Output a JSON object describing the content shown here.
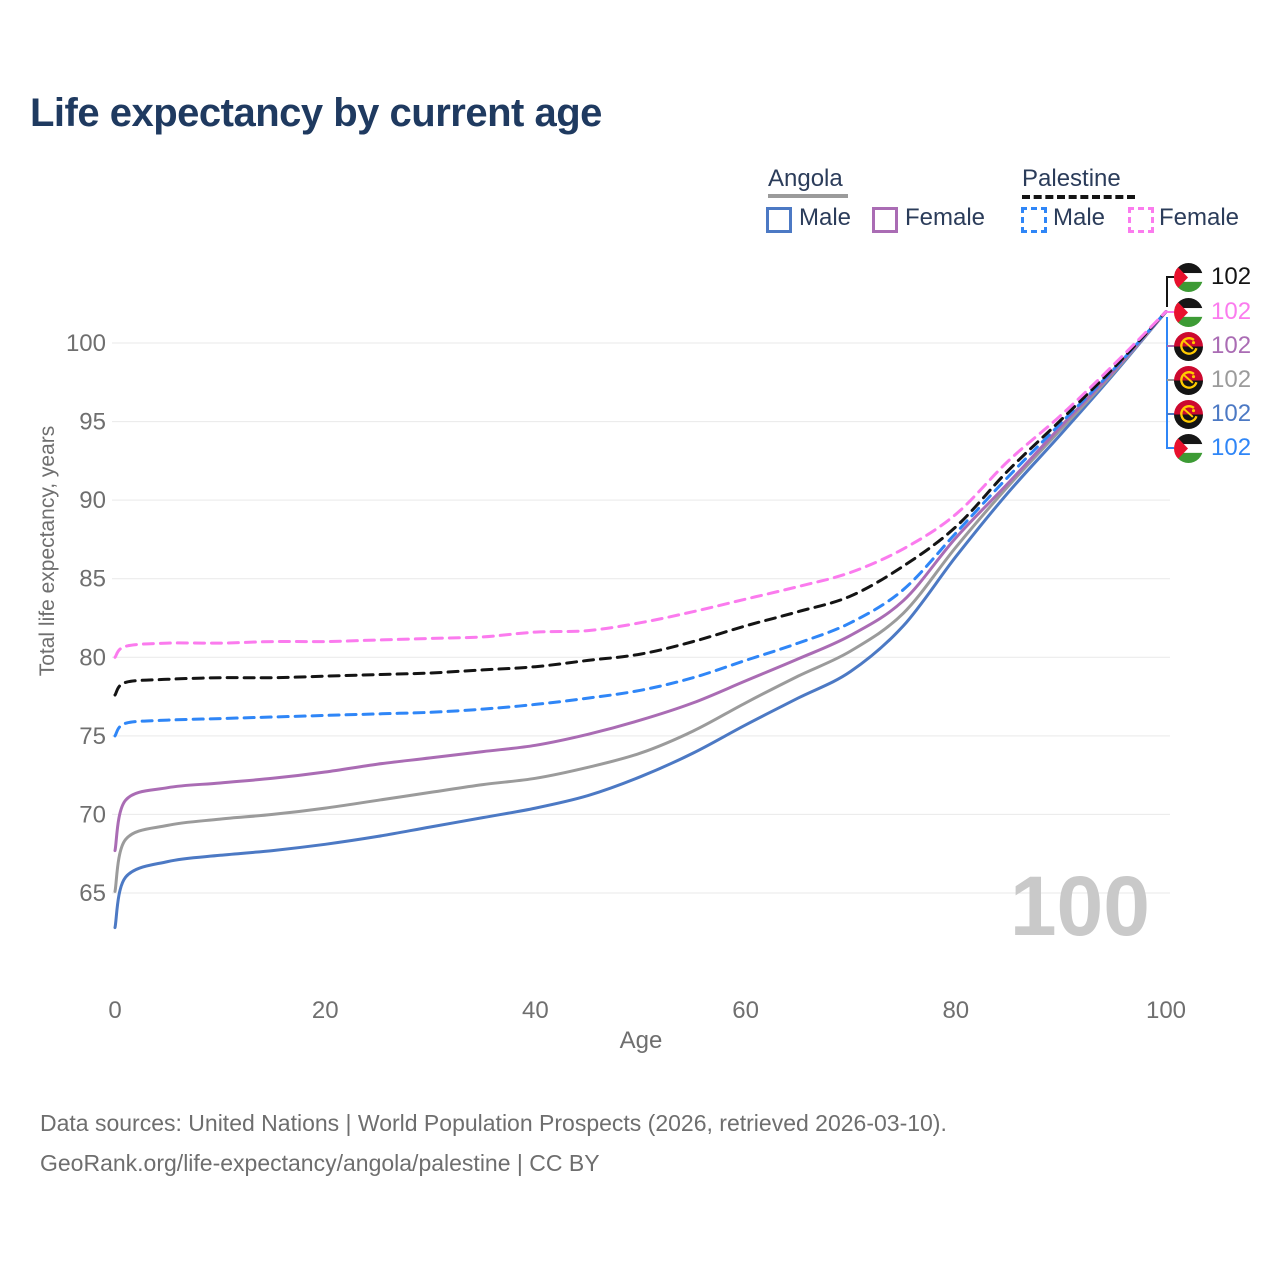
{
  "title": "Life expectancy by current age",
  "legend": {
    "groups": [
      {
        "label": "Angola",
        "style": "solid",
        "underline_color": "#9b9b9b"
      },
      {
        "label": "Palestine",
        "style": "dashed",
        "underline_color": "#141414"
      }
    ],
    "items": [
      {
        "group": "Angola",
        "label": "Male",
        "color": "#4c79c4",
        "dashed": false
      },
      {
        "group": "Angola",
        "label": "Female",
        "color": "#aa6cb4",
        "dashed": false
      },
      {
        "group": "Palestine",
        "label": "Male",
        "color": "#2f86f7",
        "dashed": true
      },
      {
        "group": "Palestine",
        "label": "Female",
        "color": "#fb7bee",
        "dashed": true
      }
    ]
  },
  "chart_data": {
    "type": "line",
    "title": "Life expectancy by current age",
    "xlabel": "Age",
    "ylabel": "Total life expectancy, years",
    "xlim": [
      0,
      100
    ],
    "ylim": [
      62,
      103
    ],
    "xticks": [
      0,
      20,
      40,
      60,
      80,
      100
    ],
    "yticks": [
      65,
      70,
      75,
      80,
      85,
      90,
      95,
      100
    ],
    "grid": "horizontal",
    "ages": [
      0,
      1,
      5,
      10,
      15,
      20,
      25,
      30,
      35,
      40,
      45,
      50,
      55,
      60,
      65,
      70,
      75,
      80,
      85,
      90,
      95,
      100
    ],
    "series": [
      {
        "name": "Angola Male",
        "color": "#4c79c4",
        "style": "solid",
        "values": [
          62.8,
          66.0,
          67.0,
          67.4,
          67.7,
          68.1,
          68.6,
          69.2,
          69.8,
          70.4,
          71.2,
          72.4,
          73.9,
          75.7,
          77.4,
          79.1,
          82.0,
          86.4,
          90.5,
          94.2,
          98.0,
          102.0
        ]
      },
      {
        "name": "Angola Both sexes",
        "color": "#9b9b9b",
        "style": "solid",
        "values": [
          65.1,
          68.4,
          69.3,
          69.7,
          70.0,
          70.4,
          70.9,
          71.4,
          71.9,
          72.3,
          73.0,
          73.9,
          75.3,
          77.1,
          78.8,
          80.4,
          82.8,
          87.0,
          90.9,
          94.5,
          98.1,
          102.0
        ]
      },
      {
        "name": "Angola Female",
        "color": "#aa6cb4",
        "style": "solid",
        "values": [
          67.7,
          70.9,
          71.7,
          72.0,
          72.3,
          72.7,
          73.2,
          73.6,
          74.0,
          74.4,
          75.1,
          76.0,
          77.1,
          78.5,
          79.9,
          81.4,
          83.6,
          87.6,
          91.1,
          94.7,
          98.2,
          102.0
        ]
      },
      {
        "name": "Palestine Male",
        "color": "#2f86f7",
        "style": "dashed",
        "values": [
          75.0,
          75.8,
          76.0,
          76.1,
          76.2,
          76.3,
          76.4,
          76.5,
          76.7,
          77.0,
          77.4,
          77.9,
          78.7,
          79.8,
          80.9,
          82.2,
          84.3,
          87.9,
          91.5,
          94.9,
          98.3,
          102.0
        ]
      },
      {
        "name": "Palestine Both sexes",
        "color": "#141414",
        "style": "dashed",
        "values": [
          77.6,
          78.4,
          78.6,
          78.7,
          78.7,
          78.8,
          78.9,
          79.0,
          79.2,
          79.4,
          79.8,
          80.2,
          81.0,
          82.0,
          82.9,
          83.9,
          85.8,
          88.3,
          91.9,
          95.1,
          98.4,
          102.0
        ]
      },
      {
        "name": "Palestine Female",
        "color": "#fb7bee",
        "style": "dashed",
        "values": [
          80.0,
          80.7,
          80.9,
          80.9,
          81.0,
          81.0,
          81.1,
          81.2,
          81.3,
          81.6,
          81.7,
          82.2,
          82.9,
          83.7,
          84.5,
          85.4,
          86.9,
          89.1,
          92.5,
          95.4,
          98.6,
          102.0
        ]
      }
    ]
  },
  "end_labels": [
    {
      "flag": "palestine",
      "series": "Palestine Both sexes",
      "value": "102",
      "color": "#141414"
    },
    {
      "flag": "palestine",
      "series": "Palestine Female",
      "value": "102",
      "color": "#fb7bee"
    },
    {
      "flag": "angola",
      "series": "Angola Female",
      "value": "102",
      "color": "#aa6cb4"
    },
    {
      "flag": "angola",
      "series": "Angola Both sexes",
      "value": "102",
      "color": "#9b9b9b"
    },
    {
      "flag": "angola",
      "series": "Angola Male",
      "value": "102",
      "color": "#4c79c4"
    },
    {
      "flag": "palestine",
      "series": "Palestine Male",
      "value": "102",
      "color": "#2f86f7"
    }
  ],
  "watermark": "100",
  "footer": {
    "line1": "Data sources: United Nations | World Population Prospects (2026, retrieved 2026-03-10).",
    "line2": "GeoRank.org/life-expectancy/angola/palestine | CC BY"
  }
}
